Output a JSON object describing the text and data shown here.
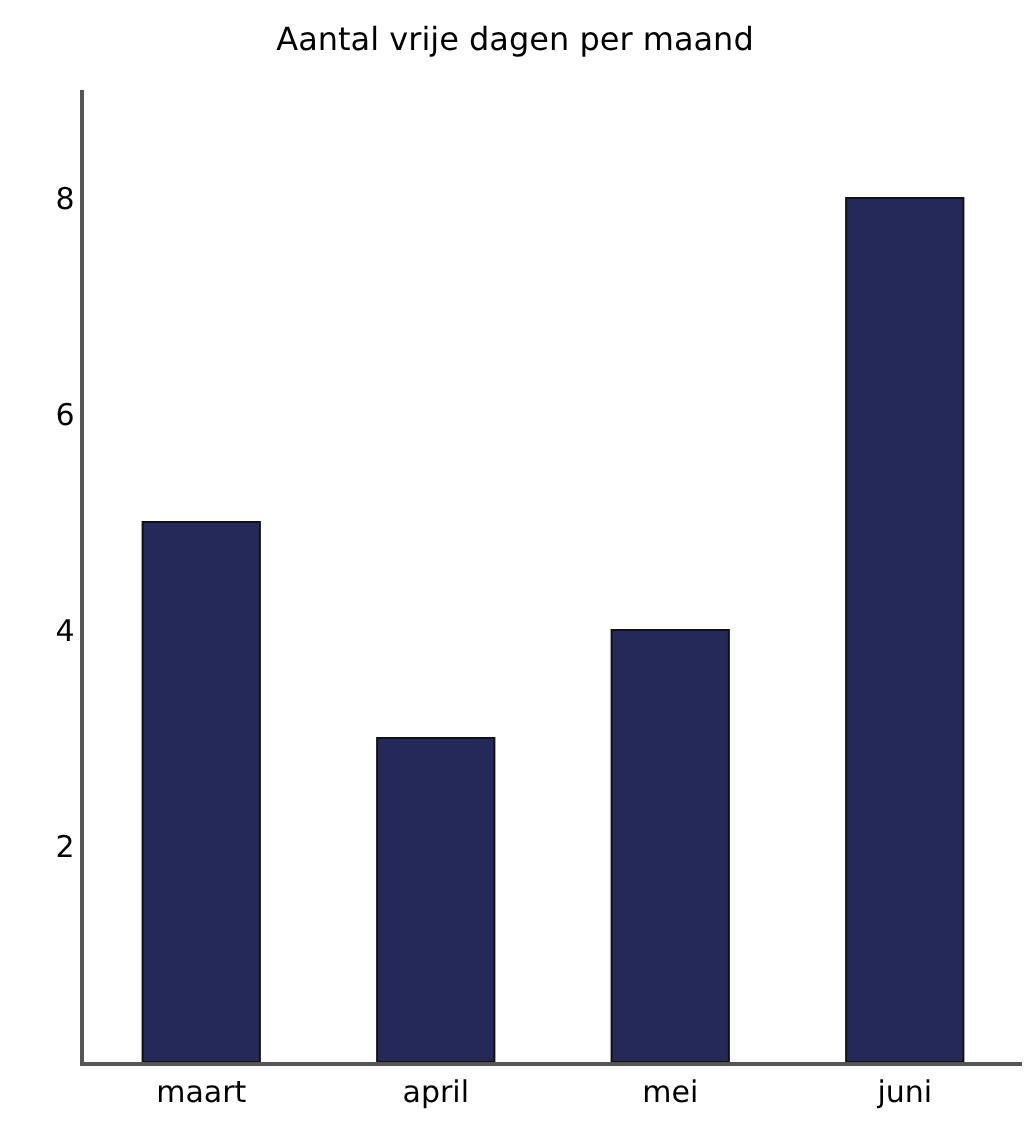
{
  "chart_data": {
    "type": "bar",
    "title": "Aantal vrije dagen per maand",
    "categories": [
      "maart",
      "april",
      "mei",
      "juni"
    ],
    "values": [
      5,
      3,
      4,
      8
    ],
    "color": "#25295a",
    "ylim": [
      0,
      9
    ],
    "yticks": [
      2,
      4,
      6,
      8
    ]
  }
}
